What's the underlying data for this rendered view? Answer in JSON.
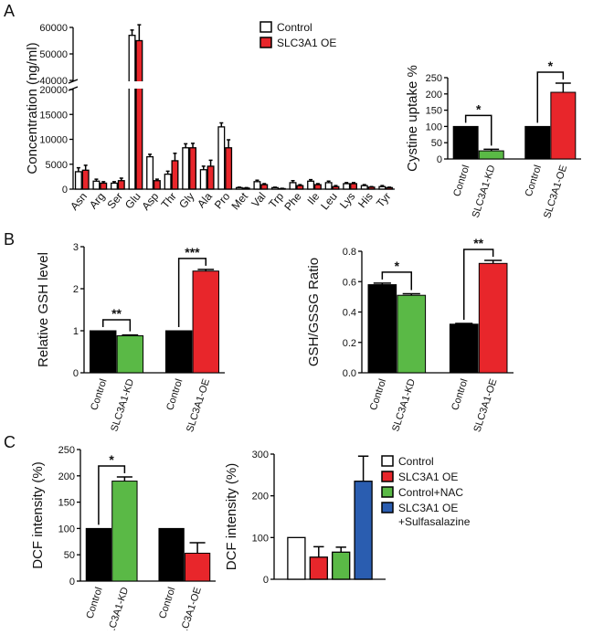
{
  "chart_data": [
    {
      "type": "bar",
      "panel": "A",
      "ylabel": "Concentration (ng/ml)",
      "categories": [
        "Asn",
        "Arg",
        "Ser",
        "Glu",
        "Asp",
        "Thr",
        "Gly",
        "Ala",
        "Pro",
        "Met",
        "Val",
        "Trp",
        "Phe",
        "Ile",
        "Leu",
        "Lys",
        "His",
        "Tyr"
      ],
      "series": [
        {
          "name": "Control",
          "color": "#ffffff",
          "values": [
            3500,
            1600,
            1200,
            57000,
            6500,
            3000,
            8300,
            3900,
            12500,
            300,
            1500,
            300,
            1300,
            1600,
            1300,
            1100,
            700,
            500
          ],
          "errors": [
            800,
            400,
            300,
            2000,
            500,
            600,
            800,
            700,
            800,
            100,
            300,
            100,
            400,
            300,
            300,
            200,
            200,
            200
          ]
        },
        {
          "name": "SLC3A1 OE",
          "color": "#e8262b",
          "values": [
            3800,
            1200,
            1700,
            55000,
            1700,
            5700,
            8300,
            4600,
            8300,
            200,
            900,
            100,
            700,
            900,
            500,
            1100,
            400,
            300
          ],
          "errors": [
            1000,
            300,
            500,
            6000,
            300,
            1500,
            900,
            1200,
            1600,
            100,
            200,
            50,
            200,
            200,
            200,
            200,
            100,
            100
          ]
        }
      ],
      "ylim": [
        0,
        60000
      ],
      "ybreak": [
        20000,
        40000
      ],
      "yticks": [
        0,
        5000,
        10000,
        15000,
        20000,
        40000,
        50000,
        60000
      ],
      "legend": "top"
    },
    {
      "type": "bar",
      "ylabel": "Cystine uptake %",
      "categories": [
        "Control",
        "SLC3A1-KD",
        "Control",
        "SLC3A1-OE"
      ],
      "values": [
        100,
        25,
        100,
        205
      ],
      "errors": [
        null,
        5,
        null,
        28
      ],
      "colors": [
        "#000000",
        "#5ab946",
        "#000000",
        "#e8262b"
      ],
      "annotations": [
        "*",
        "*"
      ],
      "ylim": [
        0,
        250
      ],
      "yticks": [
        0,
        50,
        100,
        150,
        200,
        250
      ]
    },
    {
      "type": "bar",
      "panel": "B",
      "ylabel": "Relative GSH level",
      "categories": [
        "Control",
        "SLC3A1-KD",
        "Control",
        "SLC3A1-OE"
      ],
      "values": [
        1,
        0.88,
        1,
        2.42
      ],
      "errors": [
        null,
        0.02,
        null,
        0.04
      ],
      "colors": [
        "#000000",
        "#5ab946",
        "#000000",
        "#e8262b"
      ],
      "annotations": [
        "**",
        "***"
      ],
      "ylim": [
        0,
        3
      ],
      "yticks": [
        0,
        1,
        2,
        3
      ]
    },
    {
      "type": "bar",
      "ylabel": "GSH/GSSG Ratio",
      "categories": [
        "Control",
        "SLC3A1-KD",
        "Control",
        "SLC3A1-OE"
      ],
      "values": [
        0.58,
        0.51,
        0.32,
        0.72
      ],
      "errors": [
        0.01,
        0.01,
        0.005,
        0.02
      ],
      "colors": [
        "#000000",
        "#5ab946",
        "#000000",
        "#e8262b"
      ],
      "annotations": [
        "*",
        "**"
      ],
      "ylim": [
        0,
        0.8
      ],
      "yticks": [
        {
          "value": 0,
          "label": "0.0"
        },
        0.2,
        0.4,
        0.6,
        0.8
      ]
    },
    {
      "type": "bar",
      "panel": "C",
      "ylabel": "DCF intensity (%)",
      "categories": [
        "Control",
        "SLC3A1-KD",
        "Control",
        "SLC3A1-OE"
      ],
      "values": [
        100,
        190,
        100,
        53
      ],
      "errors": [
        null,
        8,
        null,
        20
      ],
      "colors": [
        "#000000",
        "#5ab946",
        "#000000",
        "#e8262b"
      ],
      "annotations": [
        "*"
      ],
      "ylim": [
        0,
        250
      ],
      "yticks": [
        0,
        50,
        100,
        150,
        200,
        250
      ]
    },
    {
      "type": "bar",
      "ylabel": "DCF intensity (%)",
      "series": [
        {
          "name": "Control",
          "color": "#ffffff",
          "values": [
            100
          ],
          "errors": [
            null
          ]
        },
        {
          "name": "SLC3A1 OE",
          "color": "#e8262b",
          "values": [
            53
          ],
          "errors": [
            25
          ]
        },
        {
          "name": "Control+NAC",
          "color": "#5ab946",
          "values": [
            65
          ],
          "errors": [
            12
          ]
        },
        {
          "name": "SLC3A1 OE\n+Sulfasalazine",
          "color": "#2a5db0",
          "values": [
            235
          ],
          "errors": [
            60
          ]
        }
      ],
      "ylim": [
        0,
        300
      ],
      "yticks": [
        0,
        100,
        200,
        300
      ],
      "legend": "right"
    }
  ]
}
